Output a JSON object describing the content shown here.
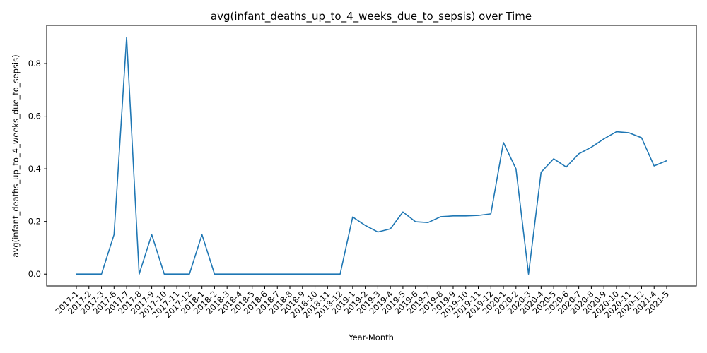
{
  "chart_data": {
    "type": "line",
    "title": "avg(infant_deaths_up_to_4_weeks_due_to_sepsis) over Time",
    "xlabel": "Year-Month",
    "ylabel": "avg(infant_deaths_up_to_4_weeks_due_to_sepsis)",
    "x": [
      "2017-1",
      "2017-2",
      "2017-3",
      "2017-6",
      "2017-7",
      "2017-8",
      "2017-9",
      "2017-10",
      "2017-11",
      "2017-12",
      "2018-1",
      "2018-2",
      "2018-3",
      "2018-4",
      "2018-5",
      "2018-6",
      "2018-7",
      "2018-8",
      "2018-9",
      "2018-10",
      "2018-11",
      "2018-12",
      "2019-1",
      "2019-2",
      "2019-3",
      "2019-4",
      "2019-5",
      "2019-6",
      "2019-7",
      "2019-8",
      "2019-9",
      "2019-10",
      "2019-11",
      "2019-12",
      "2020-1",
      "2020-2",
      "2020-3",
      "2020-4",
      "2020-5",
      "2020-6",
      "2020-7",
      "2020-8",
      "2020-9",
      "2020-10",
      "2020-11",
      "2020-12",
      "2021-4",
      "2021-5"
    ],
    "values": [
      0,
      0,
      0,
      0.15,
      0.9,
      0,
      0.15,
      0,
      0,
      0,
      0.15,
      0,
      0,
      0,
      0,
      0,
      0,
      0,
      0,
      0,
      0,
      0,
      0.217,
      0.185,
      0.16,
      0.172,
      0.236,
      0.199,
      0.196,
      0.218,
      0.221,
      0.221,
      0.223,
      0.229,
      0.5,
      0.4,
      0,
      0.387,
      0.438,
      0.407,
      0.457,
      0.482,
      0.514,
      0.541,
      0.537,
      0.518,
      0.411,
      0.431
    ],
    "yticks": [
      "0.0",
      "0.2",
      "0.4",
      "0.6",
      "0.8"
    ],
    "ylim": [
      -0.045,
      0.945
    ],
    "color": "#1f77b4",
    "grid": false
  }
}
